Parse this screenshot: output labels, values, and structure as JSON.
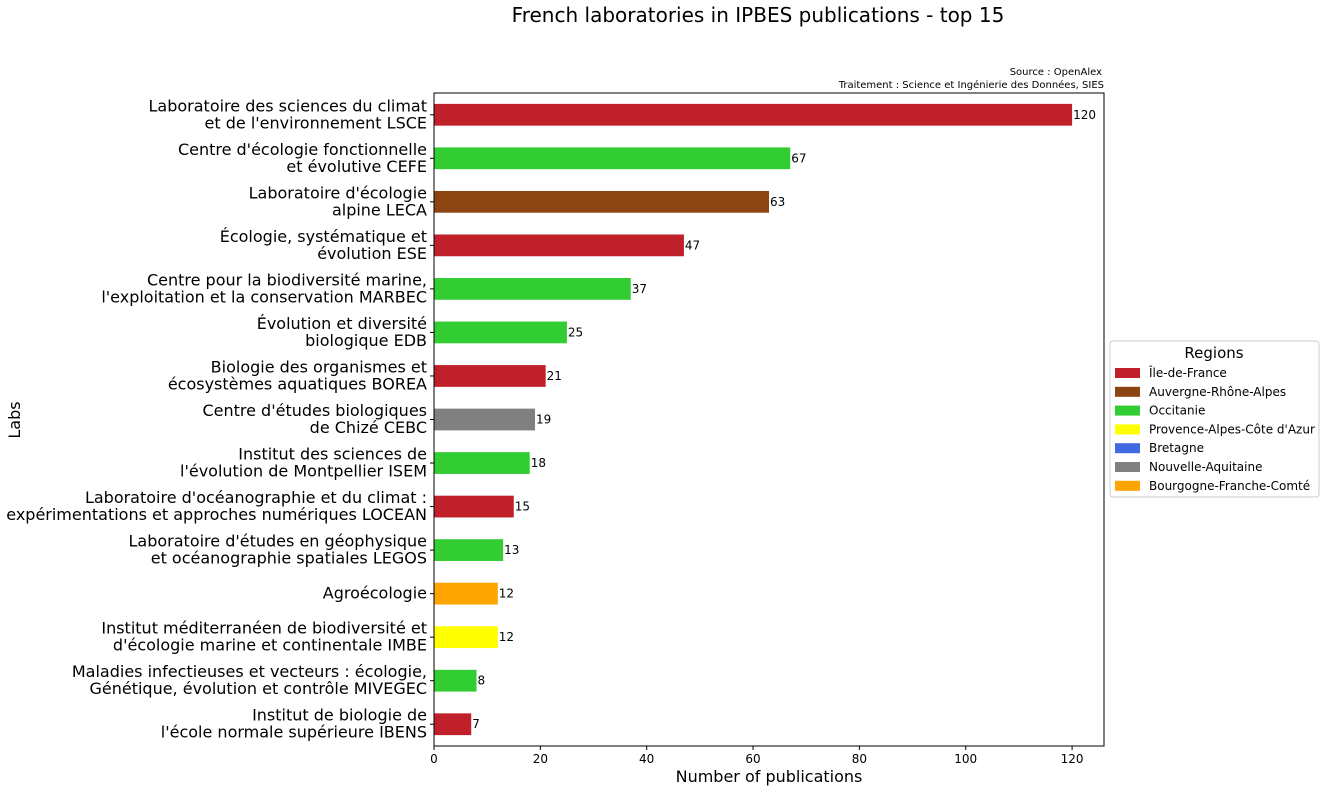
{
  "chart_data": {
    "type": "bar",
    "orientation": "horizontal",
    "title": "French laboratories in IPBES publications - top 15",
    "source_lines": [
      "Source : OpenAlex",
      "Traitement : Science et Ingénierie des Données, SIES"
    ],
    "xlabel": "Number of publications",
    "ylabel": "Labs",
    "xlim": [
      0,
      126
    ],
    "xticks": [
      0,
      20,
      40,
      60,
      80,
      100,
      120
    ],
    "grid": false,
    "legend_position": "right",
    "categories": [
      {
        "lines": [
          "Laboratoire des sciences du climat",
          "et de l'environnement LSCE"
        ],
        "value": 120,
        "region": "Île-de-France"
      },
      {
        "lines": [
          "Centre d'écologie fonctionnelle",
          "et évolutive CEFE"
        ],
        "value": 67,
        "region": "Occitanie"
      },
      {
        "lines": [
          "Laboratoire d'écologie",
          "alpine LECA"
        ],
        "value": 63,
        "region": "Auvergne-Rhône-Alpes"
      },
      {
        "lines": [
          "Écologie, systématique et",
          "évolution ESE"
        ],
        "value": 47,
        "region": "Île-de-France"
      },
      {
        "lines": [
          "Centre pour la biodiversité marine,",
          "l'exploitation et la conservation MARBEC"
        ],
        "value": 37,
        "region": "Occitanie"
      },
      {
        "lines": [
          "Évolution et diversité",
          "biologique EDB"
        ],
        "value": 25,
        "region": "Occitanie"
      },
      {
        "lines": [
          "Biologie des organismes et",
          "écosystèmes aquatiques BOREA"
        ],
        "value": 21,
        "region": "Île-de-France"
      },
      {
        "lines": [
          "Centre d'études biologiques",
          "de Chizé CEBC"
        ],
        "value": 19,
        "region": "Nouvelle-Aquitaine"
      },
      {
        "lines": [
          "Institut des sciences de",
          "l'évolution de Montpellier ISEM"
        ],
        "value": 18,
        "region": "Occitanie"
      },
      {
        "lines": [
          "Laboratoire d'océanographie et du climat :",
          "expérimentations et approches numériques LOCEAN"
        ],
        "value": 15,
        "region": "Île-de-France"
      },
      {
        "lines": [
          "Laboratoire d'études en géophysique",
          "et océanographie spatiales LEGOS"
        ],
        "value": 13,
        "region": "Occitanie"
      },
      {
        "lines": [
          "Agroécologie"
        ],
        "value": 12,
        "region": "Bourgogne-Franche-Comté"
      },
      {
        "lines": [
          "Institut méditerranéen de biodiversité et",
          "d'écologie marine et continentale IMBE"
        ],
        "value": 12,
        "region": "Provence-Alpes-Côte d'Azur"
      },
      {
        "lines": [
          "Maladies infectieuses et vecteurs : écologie,",
          "Génétique, évolution et contrôle MIVEGEC"
        ],
        "value": 8,
        "region": "Occitanie"
      },
      {
        "lines": [
          "Institut de biologie de",
          "l'école normale supérieure IBENS"
        ],
        "value": 7,
        "region": "Île-de-France"
      }
    ],
    "legend": {
      "title": "Regions",
      "items": [
        {
          "name": "Île-de-France",
          "color": "#c0202a"
        },
        {
          "name": "Auvergne-Rhône-Alpes",
          "color": "#8b4513"
        },
        {
          "name": "Occitanie",
          "color": "#32cd32"
        },
        {
          "name": "Provence-Alpes-Côte d'Azur",
          "color": "#ffff00"
        },
        {
          "name": "Bretagne",
          "color": "#4169e1"
        },
        {
          "name": "Nouvelle-Aquitaine",
          "color": "#808080"
        },
        {
          "name": "Bourgogne-Franche-Comté",
          "color": "#ffa500"
        }
      ]
    }
  }
}
